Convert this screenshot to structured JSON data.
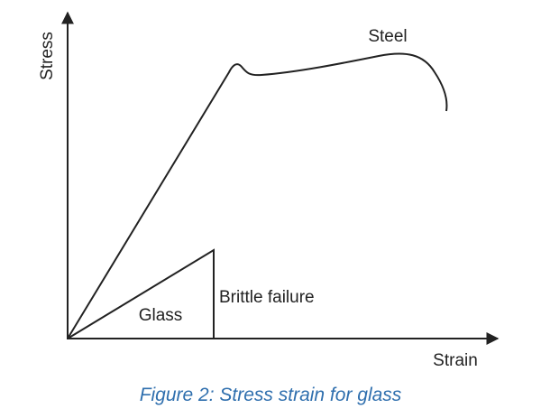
{
  "labels": {
    "y_axis": "Stress",
    "x_axis": "Strain",
    "steel": "Steel",
    "glass": "Glass",
    "failure": "Brittle failure"
  },
  "caption": "Figure 2: Stress strain for glass"
}
